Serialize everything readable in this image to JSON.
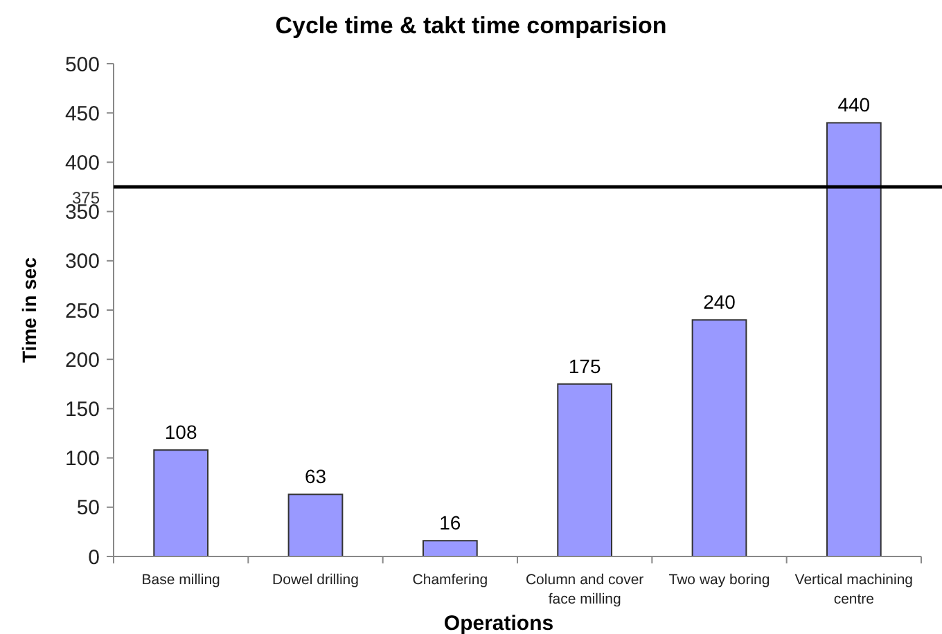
{
  "chart_data": {
    "type": "bar",
    "title": "Cycle time & takt time comparision",
    "xlabel": "Operations",
    "ylabel": "Time in sec",
    "categories": [
      "Base milling",
      "Dowel drilling",
      "Chamfering",
      "Column and cover face milling",
      "Two way boring",
      "Vertical machining centre"
    ],
    "values": [
      108,
      63,
      16,
      175,
      240,
      440
    ],
    "color": "#9999ff",
    "data_labels": true,
    "ylim": [
      0,
      500
    ],
    "yticks": [
      0,
      50,
      100,
      150,
      200,
      250,
      300,
      350,
      400,
      450,
      500
    ],
    "ref_lines": [
      {
        "axis": "y",
        "value": 375,
        "label": "375",
        "color": "#000000"
      }
    ]
  }
}
